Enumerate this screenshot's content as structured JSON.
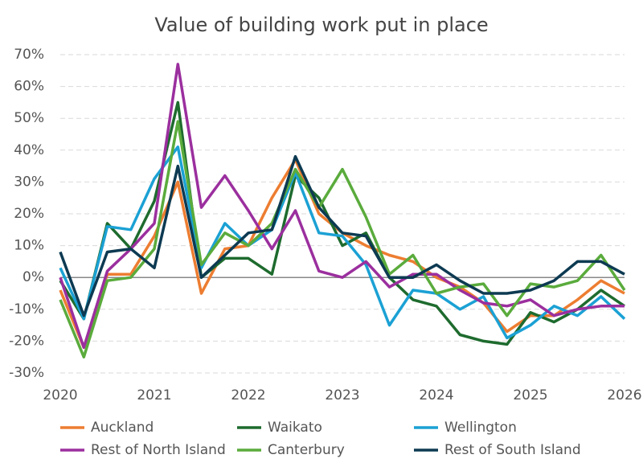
{
  "chart_data": {
    "type": "line",
    "title": "Value of building work put in place",
    "x": [
      2020,
      2020.25,
      2020.5,
      2020.75,
      2021,
      2021.25,
      2021.5,
      2021.75,
      2022,
      2022.25,
      2022.5,
      2022.75,
      2023,
      2023.25,
      2023.5,
      2023.75,
      2024,
      2024.25,
      2024.5,
      2024.75,
      2025,
      2025.25,
      2025.5,
      2025.75,
      2026
    ],
    "xlim": [
      2020,
      2026
    ],
    "xticks": [
      2020,
      2021,
      2022,
      2023,
      2024,
      2025,
      2026
    ],
    "ylim": [
      -30,
      70
    ],
    "yticks": [
      {
        "value": -30,
        "label": "-30%"
      },
      {
        "value": -20,
        "label": "-20%"
      },
      {
        "value": -10,
        "label": "-10%"
      },
      {
        "value": 0,
        "label": "0%"
      },
      {
        "value": 10,
        "label": "10%"
      },
      {
        "value": 20,
        "label": "20%"
      },
      {
        "value": 30,
        "label": "30%"
      },
      {
        "value": 40,
        "label": "40%"
      },
      {
        "value": 50,
        "label": "50%"
      },
      {
        "value": 60,
        "label": "60%"
      },
      {
        "value": 70,
        "label": "70%"
      }
    ],
    "grid": true,
    "legend": "bottom",
    "series": [
      {
        "name": "Auckland",
        "color": "#ed7d31",
        "values": [
          -4,
          -22,
          1,
          1,
          13,
          30,
          -5,
          9,
          10,
          25,
          37,
          20,
          14,
          10,
          7,
          5,
          0,
          -3,
          -8,
          -17,
          -12,
          -12,
          -7,
          -1,
          -5
        ]
      },
      {
        "name": "Waikato",
        "color": "#1e6b2e",
        "values": [
          -1,
          -13,
          17,
          9,
          24,
          55,
          0,
          6,
          6,
          1,
          32,
          25,
          10,
          14,
          0,
          -7,
          -9,
          -18,
          -20,
          -21,
          -11,
          -14,
          -10,
          -4,
          -9
        ]
      },
      {
        "name": "Wellington",
        "color": "#1ba1d4",
        "values": [
          3,
          -13,
          16,
          15,
          31,
          41,
          3,
          17,
          10,
          15,
          33,
          14,
          13,
          4,
          -15,
          -4,
          -5,
          -10,
          -6,
          -19,
          -15,
          -9,
          -12,
          -6,
          -13
        ]
      },
      {
        "name": "Rest of North Island",
        "color": "#9b2f9e",
        "values": [
          0,
          -22,
          2,
          9,
          17,
          67,
          22,
          32,
          21,
          9,
          21,
          2,
          0,
          5,
          -3,
          1,
          1,
          -4,
          -8,
          -9,
          -7,
          -12,
          -10,
          -9,
          -9
        ]
      },
      {
        "name": "Canterbury",
        "color": "#5aab3c",
        "values": [
          -7,
          -25,
          -1,
          0,
          9,
          49,
          4,
          14,
          10,
          17,
          34,
          22,
          34,
          19,
          1,
          7,
          -5,
          -3,
          -2,
          -12,
          -2,
          -3,
          -1,
          7,
          -4
        ]
      },
      {
        "name": "Rest of South Island",
        "color": "#0d3a52",
        "values": [
          8,
          -12,
          8,
          9,
          3,
          35,
          0,
          7,
          14,
          15,
          38,
          22,
          14,
          13,
          0,
          0,
          4,
          -1,
          -5,
          -5,
          -4,
          -1,
          5,
          5,
          1
        ]
      }
    ]
  }
}
